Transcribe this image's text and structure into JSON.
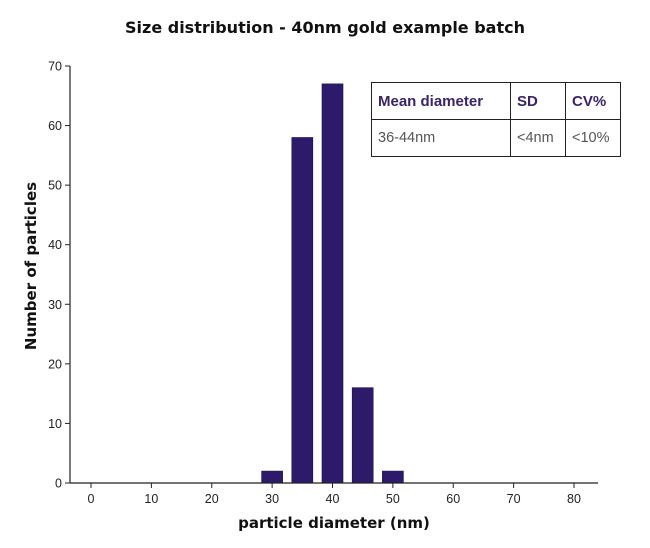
{
  "chart_data": {
    "type": "bar",
    "title": "Size distribution - 40nm gold example batch",
    "xlabel": "particle diameter (nm)",
    "ylabel": "Number of particles",
    "x": [
      30,
      35,
      40,
      45,
      50
    ],
    "values": [
      2,
      58,
      67,
      16,
      2
    ],
    "xlim": [
      0,
      80
    ],
    "ylim": [
      0,
      70
    ],
    "xticks": [
      0,
      10,
      20,
      30,
      40,
      50,
      60,
      70,
      80
    ],
    "yticks": [
      0,
      10,
      20,
      30,
      40,
      50,
      60,
      70
    ],
    "grid": false,
    "bar_color": "#2e1a6b",
    "table": {
      "headers": [
        "Mean diameter",
        "SD",
        "CV%"
      ],
      "row": [
        "36-44nm",
        "<4nm",
        "<10%"
      ]
    }
  }
}
